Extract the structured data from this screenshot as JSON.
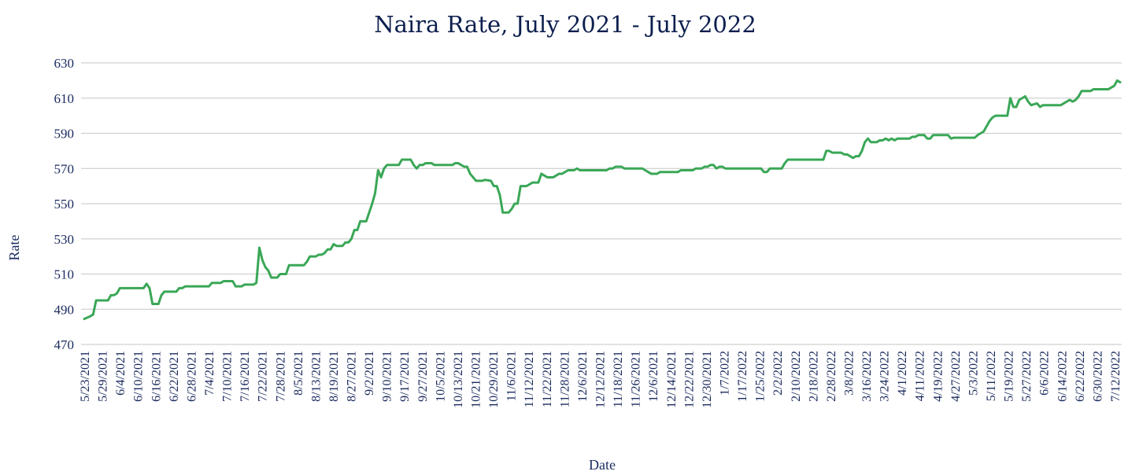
{
  "chart_data": {
    "type": "line",
    "title": "Naira Rate, July 2021 - July 2022",
    "xlabel": "Date",
    "ylabel": "Rate",
    "ylim": [
      470,
      630
    ],
    "yticks": [
      "470",
      "490",
      "510",
      "530",
      "550",
      "570",
      "590",
      "610",
      "630"
    ],
    "grid": true,
    "line_color": "#3aa757",
    "xticks": [
      "5/23/2021",
      "5/29/2021",
      "6/4/2021",
      "6/10/2021",
      "6/16/2021",
      "6/22/2021",
      "6/28/2021",
      "7/4/2021",
      "7/10/2021",
      "7/16/2021",
      "7/22/2021",
      "7/28/2021",
      "8/5/2021",
      "8/13/2021",
      "8/19/2021",
      "8/27/2021",
      "9/2/2021",
      "9/10/2021",
      "9/17/2021",
      "9/27/2021",
      "10/5/2021",
      "10/13/2021",
      "10/21/2021",
      "10/29/2021",
      "11/6/2021",
      "11/12/2021",
      "11/22/2021",
      "11/28/2021",
      "12/6/2021",
      "12/12/2021",
      "11/18/2021",
      "11/26/2021",
      "12/6/2021",
      "12/14/2021",
      "12/22/2021",
      "12/30/2021",
      "1/7/2022",
      "1/17/2022",
      "1/25/2022",
      "2/2/2022",
      "2/10/2022",
      "2/18/2022",
      "2/28/2022",
      "3/8/2022",
      "3/16/2022",
      "3/24/2022",
      "4/1/2022",
      "4/11/2022",
      "4/19/2022",
      "4/27/2022",
      "5/3/2022",
      "5/11/2022",
      "5/19/2022",
      "5/27/2022",
      "6/6/2022",
      "6/14/2022",
      "6/22/2022",
      "6/30/2022",
      "7/12/2022"
    ],
    "series": [
      {
        "values": [
          [
            0,
            484.5
          ],
          [
            2,
            486
          ],
          [
            3,
            487
          ],
          [
            4,
            495
          ],
          [
            8,
            495
          ],
          [
            9,
            498
          ],
          [
            10,
            498
          ],
          [
            11,
            499
          ],
          [
            12,
            502
          ],
          [
            20,
            502
          ],
          [
            21,
            504.5
          ],
          [
            22,
            502
          ],
          [
            23,
            493
          ],
          [
            25,
            493
          ],
          [
            26,
            498
          ],
          [
            27,
            500
          ],
          [
            31,
            500
          ],
          [
            32,
            502
          ],
          [
            33,
            502
          ],
          [
            34,
            503
          ],
          [
            42,
            503
          ],
          [
            43,
            505
          ],
          [
            46,
            505
          ],
          [
            47,
            506
          ],
          [
            50,
            506
          ],
          [
            51,
            503
          ],
          [
            53,
            503
          ],
          [
            54,
            504
          ],
          [
            57,
            504
          ],
          [
            58,
            505
          ],
          [
            59,
            525
          ],
          [
            60,
            518
          ],
          [
            61,
            514
          ],
          [
            62,
            512
          ],
          [
            63,
            508
          ],
          [
            65,
            508
          ],
          [
            66,
            510
          ],
          [
            68,
            510
          ],
          [
            69,
            515
          ],
          [
            74,
            515
          ],
          [
            75,
            517
          ],
          [
            76,
            520
          ],
          [
            78,
            520
          ],
          [
            79,
            521
          ],
          [
            80,
            521
          ],
          [
            81,
            522
          ],
          [
            82,
            524
          ],
          [
            83,
            524
          ],
          [
            84,
            527
          ],
          [
            85,
            526
          ],
          [
            87,
            526
          ],
          [
            88,
            528
          ],
          [
            89,
            528
          ],
          [
            90,
            530
          ],
          [
            91,
            535
          ],
          [
            92,
            535
          ],
          [
            93,
            540
          ],
          [
            95,
            540
          ],
          [
            96,
            545
          ],
          [
            97,
            550
          ],
          [
            98,
            556
          ],
          [
            99,
            569
          ],
          [
            100,
            565
          ],
          [
            101,
            570
          ],
          [
            102,
            572
          ],
          [
            106,
            572
          ],
          [
            107,
            575
          ],
          [
            110,
            575
          ],
          [
            111,
            572
          ],
          [
            112,
            570
          ],
          [
            113,
            572
          ],
          [
            114,
            572
          ],
          [
            115,
            573
          ],
          [
            117,
            573
          ],
          [
            118,
            572
          ],
          [
            124,
            572
          ],
          [
            125,
            573
          ],
          [
            126,
            573
          ],
          [
            127,
            572
          ],
          [
            128,
            571
          ],
          [
            129,
            571
          ],
          [
            130,
            567
          ],
          [
            131,
            565
          ],
          [
            132,
            563
          ],
          [
            134,
            563
          ],
          [
            135,
            563.5
          ],
          [
            137,
            563
          ],
          [
            138,
            560
          ],
          [
            139,
            560
          ],
          [
            140,
            555
          ],
          [
            141,
            545
          ],
          [
            143,
            545
          ],
          [
            144,
            547
          ],
          [
            145,
            550
          ],
          [
            146,
            550
          ],
          [
            147,
            560
          ],
          [
            149,
            560
          ],
          [
            150,
            561
          ],
          [
            151,
            562
          ],
          [
            153,
            562
          ],
          [
            154,
            567
          ],
          [
            155,
            566
          ],
          [
            156,
            565
          ],
          [
            158,
            565
          ],
          [
            159,
            566
          ],
          [
            160,
            567
          ],
          [
            161,
            567
          ],
          [
            162,
            568
          ],
          [
            163,
            569
          ],
          [
            165,
            569
          ],
          [
            166,
            570
          ],
          [
            167,
            569
          ],
          [
            176,
            569
          ],
          [
            177,
            570
          ],
          [
            178,
            570
          ],
          [
            179,
            571
          ],
          [
            181,
            571
          ],
          [
            182,
            570
          ],
          [
            188,
            570
          ],
          [
            189,
            569
          ],
          [
            190,
            568
          ],
          [
            191,
            567
          ],
          [
            193,
            567
          ],
          [
            194,
            568
          ],
          [
            200,
            568
          ],
          [
            201,
            569
          ],
          [
            205,
            569
          ],
          [
            206,
            570
          ],
          [
            208,
            570
          ],
          [
            209,
            571
          ],
          [
            210,
            571
          ],
          [
            211,
            572
          ],
          [
            212,
            572
          ],
          [
            213,
            570
          ],
          [
            214,
            571
          ],
          [
            215,
            571
          ],
          [
            216,
            570
          ],
          [
            228,
            570
          ],
          [
            229,
            568
          ],
          [
            230,
            568
          ],
          [
            231,
            570
          ],
          [
            235,
            570
          ],
          [
            236,
            573
          ],
          [
            237,
            575
          ],
          [
            249,
            575
          ],
          [
            250,
            580
          ],
          [
            251,
            580
          ],
          [
            252,
            579
          ],
          [
            255,
            579
          ],
          [
            256,
            578
          ],
          [
            257,
            578
          ],
          [
            258,
            577
          ],
          [
            259,
            576
          ],
          [
            260,
            577
          ],
          [
            261,
            577
          ],
          [
            262,
            580
          ],
          [
            263,
            585
          ],
          [
            264,
            587
          ],
          [
            265,
            585
          ],
          [
            267,
            585
          ],
          [
            268,
            586
          ],
          [
            269,
            586
          ],
          [
            270,
            587
          ],
          [
            271,
            586
          ],
          [
            272,
            587
          ],
          [
            273,
            586
          ],
          [
            274,
            587
          ],
          [
            278,
            587
          ],
          [
            279,
            588
          ],
          [
            280,
            588
          ],
          [
            281,
            589
          ],
          [
            283,
            589
          ],
          [
            284,
            587
          ],
          [
            285,
            587
          ],
          [
            286,
            589
          ],
          [
            291,
            589
          ],
          [
            292,
            587
          ],
          [
            293,
            587.5
          ],
          [
            300,
            587.5
          ],
          [
            301,
            589
          ],
          [
            303,
            591
          ],
          [
            304,
            594
          ],
          [
            305,
            597
          ],
          [
            306,
            599
          ],
          [
            307,
            600
          ],
          [
            311,
            600
          ],
          [
            312,
            610
          ],
          [
            313,
            605
          ],
          [
            314,
            605
          ],
          [
            315,
            609
          ],
          [
            316,
            610
          ],
          [
            317,
            611
          ],
          [
            318,
            608
          ],
          [
            319,
            606
          ],
          [
            321,
            607
          ],
          [
            322,
            605
          ],
          [
            323,
            606
          ],
          [
            329,
            606
          ],
          [
            330,
            607
          ],
          [
            331,
            608
          ],
          [
            332,
            609
          ],
          [
            333,
            608
          ],
          [
            334,
            609
          ],
          [
            335,
            611
          ],
          [
            336,
            614
          ],
          [
            339,
            614
          ],
          [
            340,
            615
          ],
          [
            345,
            615
          ],
          [
            346,
            616
          ],
          [
            347,
            617
          ],
          [
            348,
            620
          ],
          [
            349,
            619
          ]
        ]
      }
    ]
  }
}
